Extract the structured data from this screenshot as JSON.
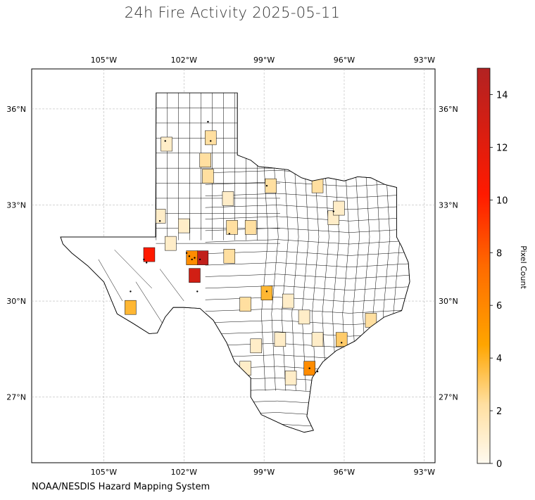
{
  "title": "24h Fire Activity 2025-05-11",
  "footer": "NOAA/NESDIS Hazard Mapping System",
  "colorbar": {
    "label": "Pixel Count",
    "ticks": [
      "0",
      "2",
      "4",
      "6",
      "8",
      "10",
      "12",
      "14"
    ],
    "min": 0,
    "max": 15,
    "colors": [
      "#fffaf0",
      "#ffd27a",
      "#ffa500",
      "#ff6a00",
      "#ff1a00",
      "#b22222"
    ]
  },
  "axes": {
    "lon_ticks": [
      "105°W",
      "102°W",
      "99°W",
      "96°W",
      "93°W"
    ],
    "lat_ticks": [
      "36°N",
      "33°N",
      "30°N",
      "27°N"
    ],
    "lon_range": [
      -107.7,
      -92.6
    ],
    "lat_range": [
      24.95,
      37.25
    ],
    "grid": true
  },
  "chart_data": {
    "type": "heatmap",
    "title": "24h Fire Activity 2025-05-11",
    "variable": "Pixel Count",
    "region": "Texas counties",
    "highlighted_counties": [
      {
        "lon": -101.3,
        "lat": 31.35,
        "value": 14
      },
      {
        "lon": -101.6,
        "lat": 30.8,
        "value": 13
      },
      {
        "lon": -103.3,
        "lat": 31.45,
        "value": 10
      },
      {
        "lon": -101.7,
        "lat": 31.35,
        "value": 6
      },
      {
        "lon": -97.3,
        "lat": 27.9,
        "value": 6
      },
      {
        "lon": -104.0,
        "lat": 29.8,
        "value": 4
      },
      {
        "lon": -98.9,
        "lat": 30.25,
        "value": 4
      },
      {
        "lon": -96.1,
        "lat": 28.8,
        "value": 3
      },
      {
        "lon": -100.3,
        "lat": 31.4,
        "value": 2
      },
      {
        "lon": -97.0,
        "lat": 33.6,
        "value": 2
      },
      {
        "lon": -98.75,
        "lat": 33.6,
        "value": 2
      },
      {
        "lon": -100.2,
        "lat": 32.3,
        "value": 2
      },
      {
        "lon": -99.5,
        "lat": 32.3,
        "value": 2
      },
      {
        "lon": -101.0,
        "lat": 35.1,
        "value": 2
      },
      {
        "lon": -101.2,
        "lat": 34.4,
        "value": 2
      },
      {
        "lon": -101.1,
        "lat": 33.9,
        "value": 2
      },
      {
        "lon": -95.0,
        "lat": 29.4,
        "value": 2
      },
      {
        "lon": -99.7,
        "lat": 29.9,
        "value": 2
      },
      {
        "lon": -96.4,
        "lat": 32.6,
        "value": 1
      },
      {
        "lon": -102.9,
        "lat": 32.65,
        "value": 1
      },
      {
        "lon": -102.0,
        "lat": 32.35,
        "value": 1
      },
      {
        "lon": -102.5,
        "lat": 31.8,
        "value": 1
      },
      {
        "lon": -100.35,
        "lat": 33.2,
        "value": 1
      },
      {
        "lon": -102.65,
        "lat": 34.9,
        "value": 1
      },
      {
        "lon": -98.1,
        "lat": 30.0,
        "value": 1
      },
      {
        "lon": -97.5,
        "lat": 29.5,
        "value": 1
      },
      {
        "lon": -97.0,
        "lat": 28.8,
        "value": 1
      },
      {
        "lon": -98.4,
        "lat": 28.8,
        "value": 1
      },
      {
        "lon": -99.3,
        "lat": 28.6,
        "value": 1
      },
      {
        "lon": -99.7,
        "lat": 27.9,
        "value": 1
      },
      {
        "lon": -98.0,
        "lat": 27.6,
        "value": 1
      },
      {
        "lon": -96.2,
        "lat": 32.9,
        "value": 1
      }
    ],
    "fire_points": [
      {
        "lon": -101.9,
        "lat": 31.5
      },
      {
        "lon": -101.8,
        "lat": 31.4
      },
      {
        "lon": -101.7,
        "lat": 31.3
      },
      {
        "lon": -101.6,
        "lat": 31.35
      },
      {
        "lon": -101.4,
        "lat": 31.3
      },
      {
        "lon": -101.5,
        "lat": 30.3
      },
      {
        "lon": -103.5,
        "lat": 31.3
      },
      {
        "lon": -103.4,
        "lat": 31.2
      },
      {
        "lon": -104.0,
        "lat": 30.3
      },
      {
        "lon": -97.3,
        "lat": 27.9
      },
      {
        "lon": -97.0,
        "lat": 27.8
      },
      {
        "lon": -98.9,
        "lat": 30.3
      },
      {
        "lon": -98.9,
        "lat": 33.6
      },
      {
        "lon": -102.7,
        "lat": 35.0
      },
      {
        "lon": -101.1,
        "lat": 35.6
      },
      {
        "lon": -101.0,
        "lat": 35.0
      },
      {
        "lon": -100.3,
        "lat": 32.1
      },
      {
        "lon": -96.4,
        "lat": 32.8
      },
      {
        "lon": -96.1,
        "lat": 28.7
      },
      {
        "lon": -102.9,
        "lat": 32.5
      }
    ]
  }
}
